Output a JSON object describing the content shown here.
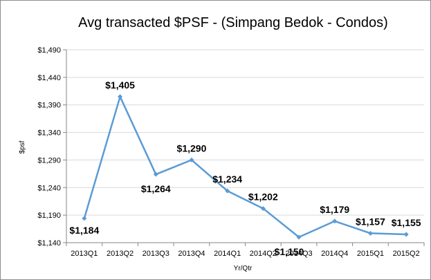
{
  "chart_data": {
    "type": "line",
    "title": "Avg transacted $PSF - (Simpang Bedok - Condos)",
    "xlabel": "Yr/Qtr",
    "ylabel": "$psf",
    "categories": [
      "2013Q1",
      "2013Q2",
      "2013Q3",
      "2013Q4",
      "2014Q1",
      "2014Q2",
      "2014Q3",
      "2014Q4",
      "2015Q1",
      "2015Q2"
    ],
    "series": [
      {
        "values": [
          1184,
          1405,
          1264,
          1290,
          1234,
          1202,
          1150,
          1179,
          1157,
          1155
        ],
        "data_labels": [
          "$1,184",
          "$1,405",
          "$1,264",
          "$1,290",
          "$1,234",
          "$1,202",
          "$1,150",
          "$1,179",
          "$1,157",
          "$1,155"
        ]
      }
    ],
    "ylim": [
      1140,
      1490
    ],
    "yticks": [
      1140,
      1190,
      1240,
      1290,
      1340,
      1390,
      1440,
      1490
    ],
    "ytick_labels": [
      "$1,140",
      "$1,190",
      "$1,240",
      "$1,290",
      "$1,340",
      "$1,390",
      "$1,440",
      "$1,490"
    ],
    "grid": true,
    "colors": {
      "line": "#5b9bd5",
      "grid": "#d9d9d9",
      "axis": "#868686"
    }
  }
}
